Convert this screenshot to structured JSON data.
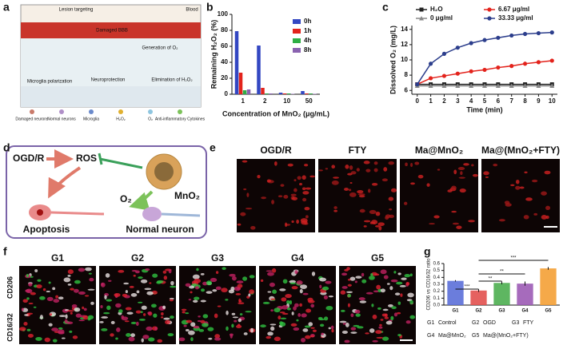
{
  "panel_labels": [
    "a",
    "b",
    "c",
    "d",
    "e",
    "f",
    "g"
  ],
  "panel_a": {
    "lesion_targeting": "Lesion targeting",
    "blood": "Blood",
    "damaged_bbb": "Damaged BBB",
    "generation_o2": "Generation of O₂",
    "microglia_polarization": "Microglia polarization",
    "neuroprotection": "Neuroprotection",
    "elimination_h2o2": "Elimination of H₂O₂",
    "legend": [
      "Damaged neurons",
      "Normal neurons",
      "Microglia",
      "H₂O₂",
      "O₂",
      "Anti-inflammatory Cytokines"
    ]
  },
  "panel_d": {
    "ogdr": "OGD/R",
    "ros": "ROS",
    "mno2": "MnO₂",
    "o2": "O₂",
    "apoptosis": "Apoptosis",
    "normal_neuron": "Normal neuron"
  },
  "panel_e": {
    "titles": [
      "OGD/R",
      "FTY",
      "Ma@MnO₂",
      "Ma@(MnO₂+FTY)"
    ]
  },
  "panel_f": {
    "titles": [
      "G1",
      "G2",
      "G3",
      "G4",
      "G5"
    ],
    "stain_red": "CD16/32",
    "stain_green": "CD206"
  },
  "chart_data": [
    {
      "type": "bar",
      "y_label": "Remaining H₂O₂ (%)",
      "x_label": "Concentration of MnO₂ (μg/mL)",
      "categories": [
        "1",
        "2",
        "10",
        "50"
      ],
      "series": [
        {
          "name": "0h",
          "color": "#3347c2",
          "values": [
            79,
            61,
            2,
            4
          ]
        },
        {
          "name": "1h",
          "color": "#e3231c",
          "values": [
            27,
            8,
            1,
            1
          ]
        },
        {
          "name": "4h",
          "color": "#2fae45",
          "values": [
            5,
            1,
            1,
            1
          ]
        },
        {
          "name": "8h",
          "color": "#8a62b0",
          "values": [
            6,
            1,
            0.5,
            0.5
          ]
        }
      ],
      "ylim": [
        0,
        100
      ],
      "yticks": [
        0,
        20,
        40,
        60,
        80,
        100
      ],
      "legend": "upper right"
    },
    {
      "type": "line",
      "y_label": "Dissolved O₂ (mg/L)",
      "x_label": "Time (min)",
      "x": [
        0,
        1,
        2,
        3,
        4,
        5,
        6,
        7,
        8,
        9,
        10
      ],
      "series": [
        {
          "name": "H₂O",
          "color": "#222222",
          "marker": "square",
          "values": [
            6.8,
            6.8,
            6.8,
            6.8,
            6.8,
            6.8,
            6.8,
            6.8,
            6.8,
            6.8,
            6.8
          ]
        },
        {
          "name": "6.67 μg/ml",
          "color": "#e3231c",
          "marker": "circle",
          "values": [
            6.8,
            7.6,
            7.9,
            8.2,
            8.5,
            8.7,
            9.0,
            9.2,
            9.5,
            9.7,
            9.9
          ]
        },
        {
          "name": "0 μg/ml",
          "color": "#888888",
          "marker": "triangle",
          "values": [
            6.6,
            6.6,
            6.6,
            6.6,
            6.6,
            6.6,
            6.6,
            6.6,
            6.6,
            6.6,
            6.6
          ]
        },
        {
          "name": "33.33 μg/ml",
          "color": "#2c3e8c",
          "marker": "circle",
          "values": [
            6.8,
            9.5,
            10.8,
            11.6,
            12.2,
            12.6,
            12.9,
            13.2,
            13.4,
            13.5,
            13.6
          ]
        }
      ],
      "xlim": [
        -0.4,
        10.4
      ],
      "xticks": [
        0,
        1,
        2,
        3,
        4,
        5,
        6,
        7,
        8,
        9,
        10
      ],
      "ylim": [
        5.5,
        14.5
      ],
      "yticks": [
        6,
        8,
        10,
        12,
        14
      ],
      "legend": "upper left"
    },
    {
      "type": "bar",
      "y_label": "CD206 vs CD16/32 ratio",
      "categories": [
        "G1",
        "G2",
        "G3",
        "G4",
        "G5"
      ],
      "values": [
        0.35,
        0.21,
        0.32,
        0.31,
        0.53
      ],
      "errors": [
        0.01,
        0.02,
        0.02,
        0.03,
        0.02
      ],
      "colors": [
        "#5b6fd8",
        "#e2504e",
        "#4cae50",
        "#9c5bb5",
        "#f4a035"
      ],
      "ylim": [
        0,
        0.6
      ],
      "yticks": [
        {
          "value": 0,
          "label": "0.0"
        },
        0.1,
        0.2,
        0.3,
        0.4,
        0.5,
        0.6
      ],
      "significance": [
        "***",
        "**",
        "**",
        "***"
      ],
      "group_legend": [
        "G1",
        "Control",
        "G2",
        "OGD",
        "G3",
        "FTY",
        "G4",
        "Ma@MnO₂",
        "G5",
        "Ma@(MnO₂+FTY)"
      ]
    }
  ]
}
